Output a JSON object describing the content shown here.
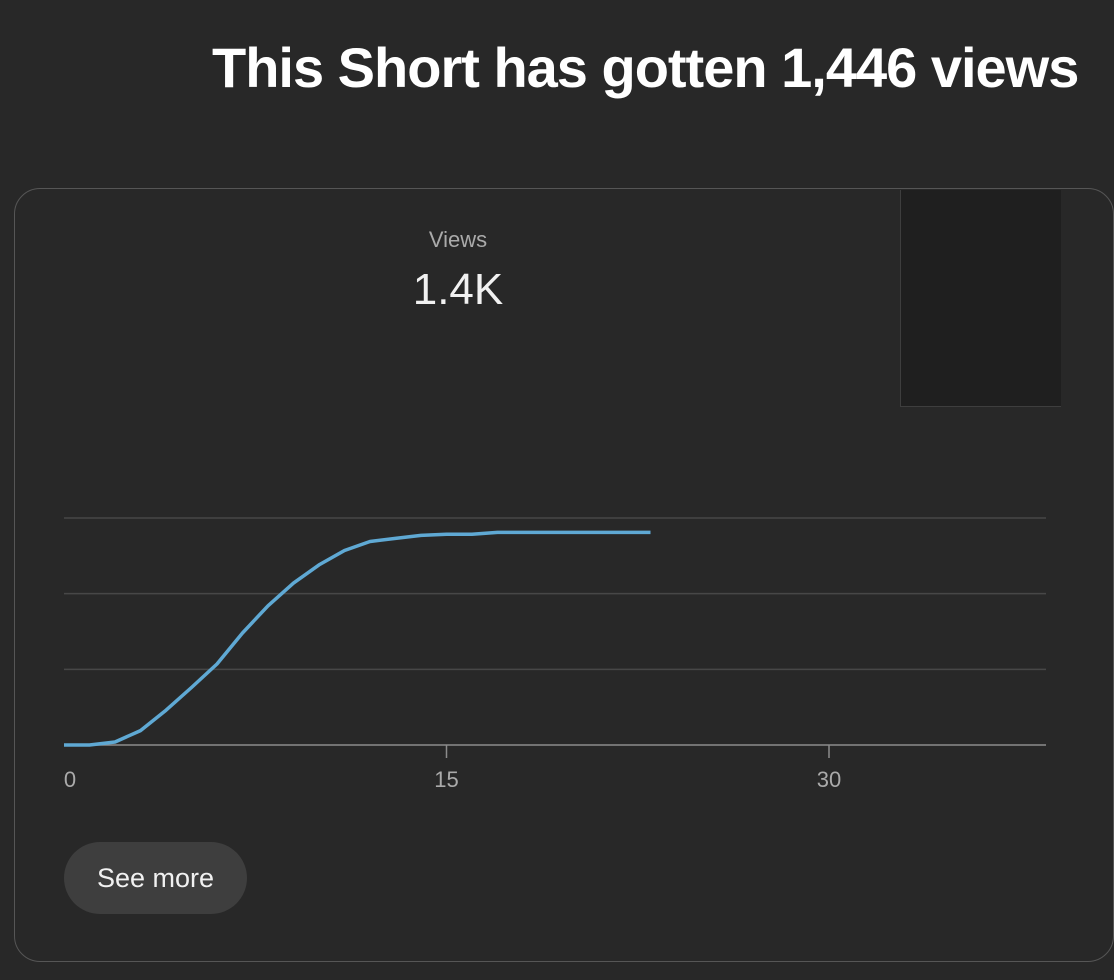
{
  "headline": "This Short has gotten 1,446 views",
  "metric": {
    "label": "Views",
    "value": "1.4K"
  },
  "see_more_label": "See more",
  "chart_data": {
    "type": "line",
    "title": "",
    "xlabel": "",
    "ylabel": "",
    "x_ticks": [
      "0",
      "15",
      "30"
    ],
    "xlim": [
      0,
      39
    ],
    "ylim": [
      0,
      1600
    ],
    "grid": true,
    "series": [
      {
        "color": "#5fa9d4",
        "x": [
          0,
          1,
          2,
          3,
          4,
          5,
          6,
          7,
          8,
          9,
          10,
          11,
          12,
          13,
          14,
          15,
          16,
          17,
          18,
          19,
          20,
          21,
          22,
          23
        ],
        "y": [
          0,
          0,
          20,
          95,
          230,
          380,
          535,
          740,
          920,
          1070,
          1190,
          1285,
          1345,
          1365,
          1385,
          1393,
          1393,
          1405,
          1405,
          1405,
          1405,
          1405,
          1405,
          1405
        ]
      }
    ]
  }
}
